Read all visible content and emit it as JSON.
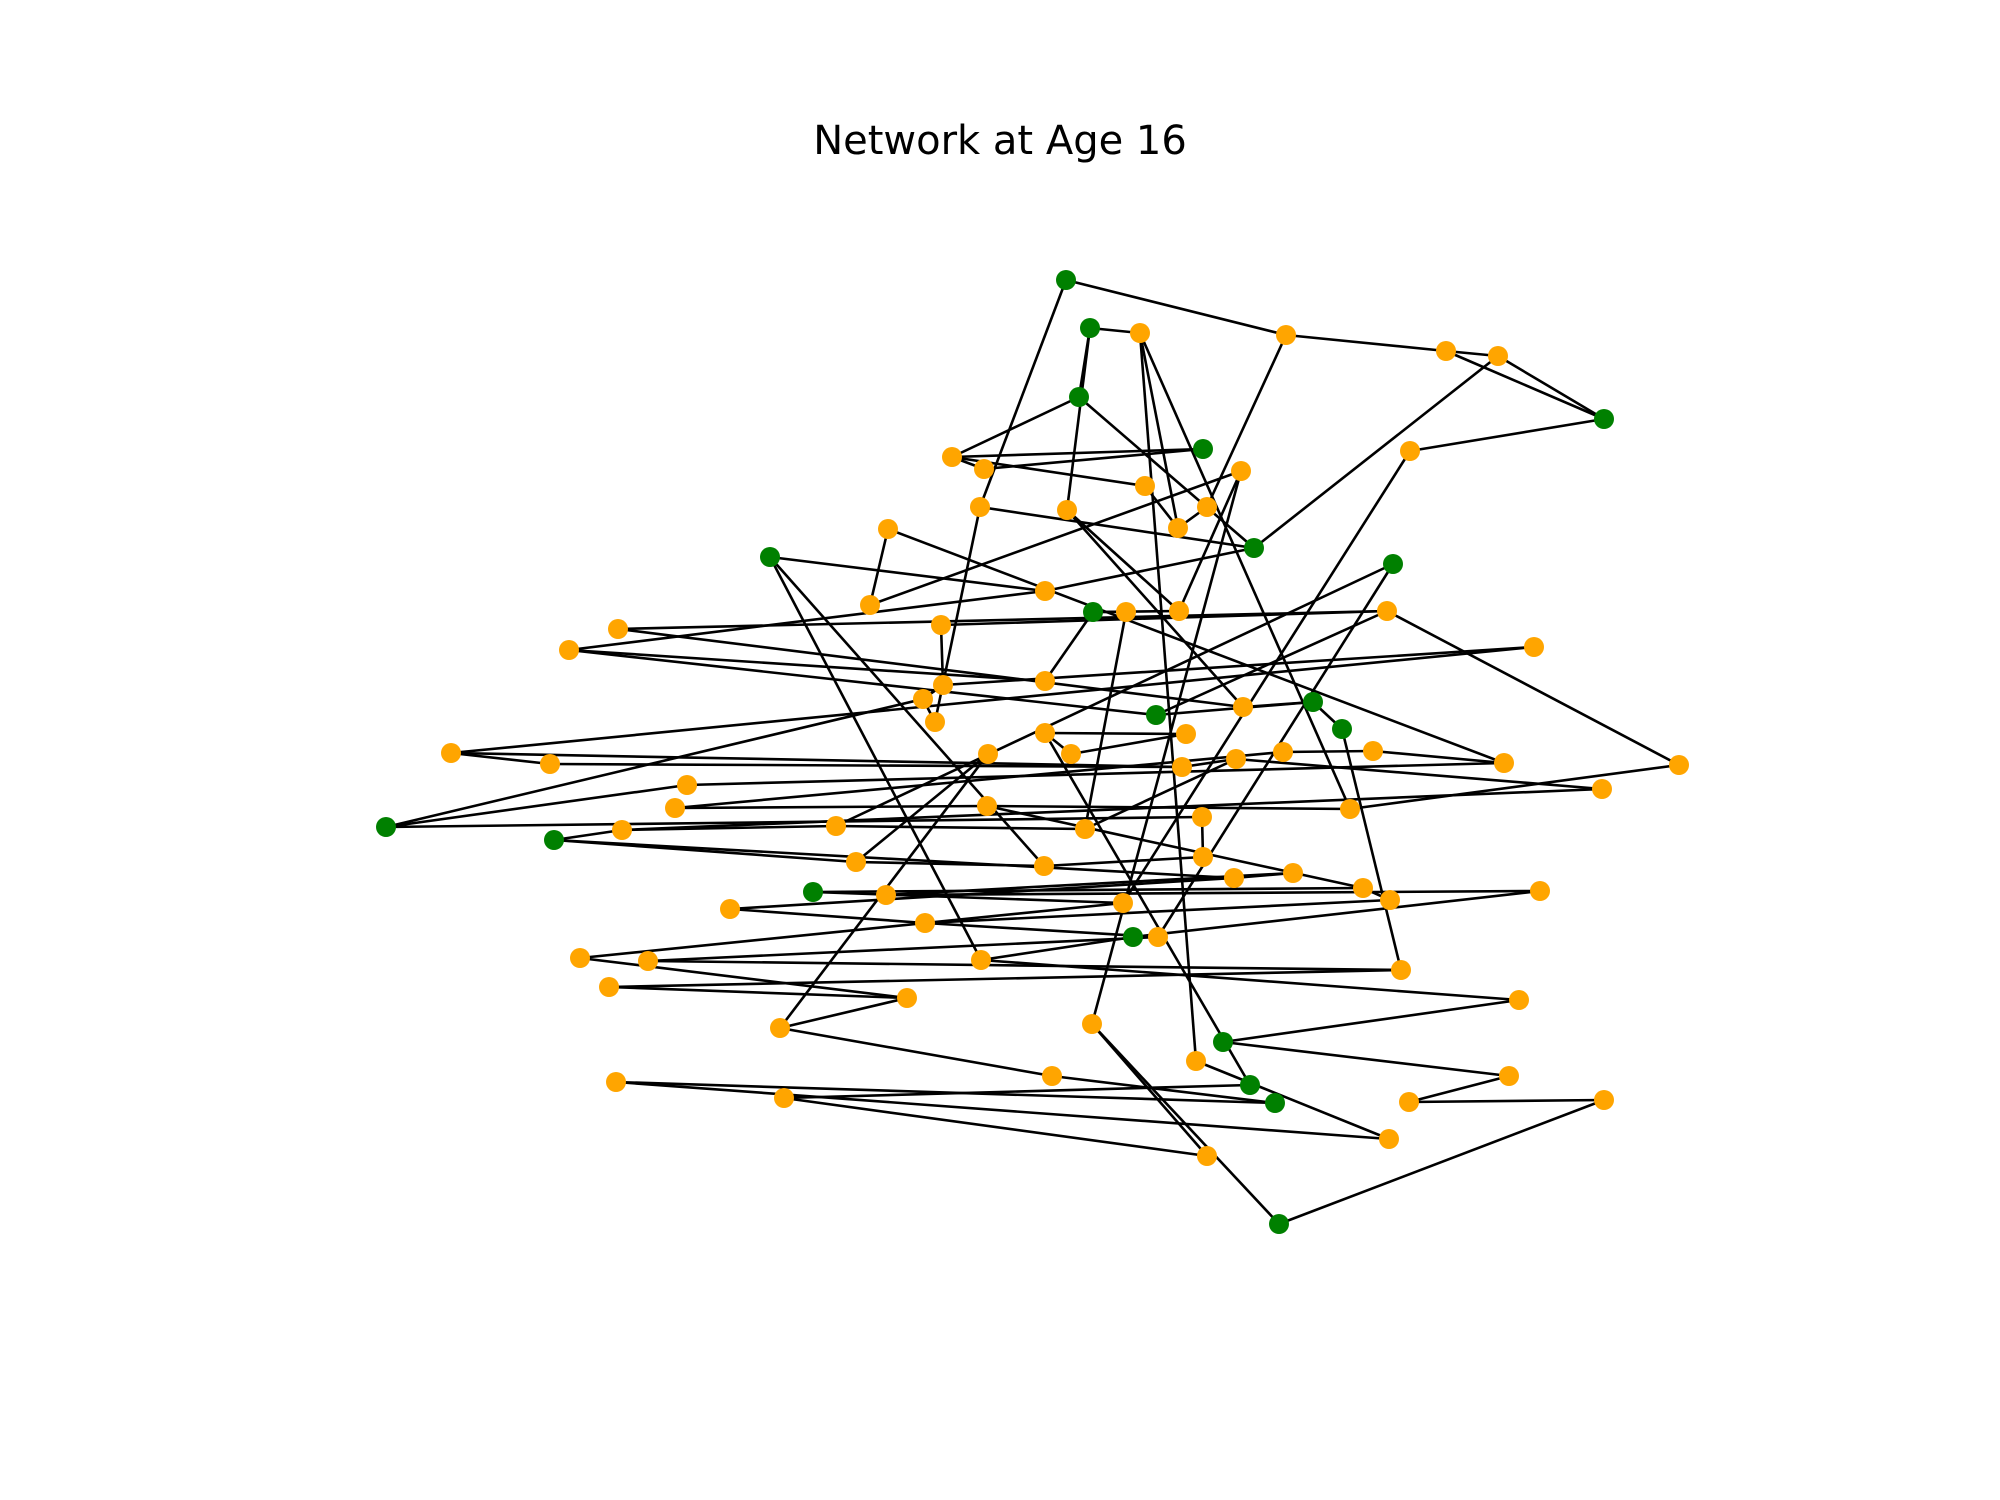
{
  "title": "Network at Age 16",
  "colors": {
    "green": "#008000",
    "orange": "#ffa500",
    "edge": "#000000",
    "background": "#ffffff"
  },
  "legend": "none",
  "nodes": [
    {
      "id": "n1",
      "group": "green"
    },
    {
      "id": "n2",
      "group": "green"
    },
    {
      "id": "n3",
      "group": "orange"
    },
    {
      "id": "n4",
      "group": "orange"
    },
    {
      "id": "n5",
      "group": "orange"
    },
    {
      "id": "n6",
      "group": "orange"
    },
    {
      "id": "n7",
      "group": "green"
    },
    {
      "id": "n8",
      "group": "green"
    },
    {
      "id": "n9",
      "group": "orange"
    },
    {
      "id": "n10",
      "group": "orange"
    },
    {
      "id": "n11",
      "group": "green"
    },
    {
      "id": "n12",
      "group": "orange"
    },
    {
      "id": "n13",
      "group": "orange"
    },
    {
      "id": "n14",
      "group": "orange"
    },
    {
      "id": "n15",
      "group": "orange"
    },
    {
      "id": "n16",
      "group": "orange"
    },
    {
      "id": "n17",
      "group": "orange"
    },
    {
      "id": "n18",
      "group": "orange"
    },
    {
      "id": "n19",
      "group": "orange"
    },
    {
      "id": "n20",
      "group": "green"
    },
    {
      "id": "n21",
      "group": "green"
    },
    {
      "id": "n22",
      "group": "green"
    },
    {
      "id": "n23",
      "group": "orange"
    },
    {
      "id": "n24",
      "group": "orange"
    },
    {
      "id": "n25",
      "group": "orange"
    },
    {
      "id": "n26",
      "group": "green"
    },
    {
      "id": "n27",
      "group": "orange"
    },
    {
      "id": "n28",
      "group": "orange"
    },
    {
      "id": "n29",
      "group": "orange"
    },
    {
      "id": "n30",
      "group": "orange"
    },
    {
      "id": "n31",
      "group": "orange"
    },
    {
      "id": "n32",
      "group": "orange"
    },
    {
      "id": "n33",
      "group": "orange"
    },
    {
      "id": "n34",
      "group": "orange"
    },
    {
      "id": "n35",
      "group": "green"
    },
    {
      "id": "n36",
      "group": "orange"
    },
    {
      "id": "n37",
      "group": "green"
    },
    {
      "id": "n38",
      "group": "orange"
    },
    {
      "id": "n39",
      "group": "orange"
    },
    {
      "id": "n40",
      "group": "green"
    },
    {
      "id": "n41",
      "group": "orange"
    },
    {
      "id": "n42",
      "group": "orange"
    },
    {
      "id": "n43",
      "group": "orange"
    },
    {
      "id": "n44",
      "group": "orange"
    },
    {
      "id": "n45",
      "group": "orange"
    },
    {
      "id": "n46",
      "group": "orange"
    },
    {
      "id": "n47",
      "group": "orange"
    },
    {
      "id": "n48",
      "group": "orange"
    },
    {
      "id": "n49",
      "group": "orange"
    },
    {
      "id": "n50",
      "group": "orange"
    },
    {
      "id": "n51",
      "group": "orange"
    },
    {
      "id": "n52",
      "group": "orange"
    },
    {
      "id": "n53",
      "group": "orange"
    },
    {
      "id": "n54",
      "group": "orange"
    },
    {
      "id": "n55",
      "group": "orange"
    },
    {
      "id": "n56",
      "group": "orange"
    },
    {
      "id": "n57",
      "group": "orange"
    },
    {
      "id": "n58",
      "group": "green"
    },
    {
      "id": "n59",
      "group": "orange"
    },
    {
      "id": "n60",
      "group": "orange"
    },
    {
      "id": "n61",
      "group": "orange"
    },
    {
      "id": "n62",
      "group": "orange"
    },
    {
      "id": "n63",
      "group": "green"
    },
    {
      "id": "n64",
      "group": "orange"
    },
    {
      "id": "n65",
      "group": "orange"
    },
    {
      "id": "n66",
      "group": "orange"
    },
    {
      "id": "n67",
      "group": "orange"
    },
    {
      "id": "n68",
      "group": "orange"
    },
    {
      "id": "n69",
      "group": "orange"
    },
    {
      "id": "n70",
      "group": "green"
    },
    {
      "id": "n71",
      "group": "orange"
    },
    {
      "id": "n72",
      "group": "orange"
    },
    {
      "id": "n73",
      "group": "orange"
    },
    {
      "id": "n74",
      "group": "orange"
    },
    {
      "id": "n75",
      "group": "orange"
    },
    {
      "id": "n76",
      "group": "orange"
    },
    {
      "id": "n77",
      "group": "green"
    },
    {
      "id": "n78",
      "group": "orange"
    },
    {
      "id": "n79",
      "group": "orange"
    },
    {
      "id": "n80",
      "group": "orange"
    },
    {
      "id": "n81",
      "group": "orange"
    },
    {
      "id": "n82",
      "group": "orange"
    },
    {
      "id": "n83",
      "group": "orange"
    },
    {
      "id": "n84",
      "group": "orange"
    },
    {
      "id": "n85",
      "group": "orange"
    },
    {
      "id": "n86",
      "group": "orange"
    },
    {
      "id": "n87",
      "group": "green"
    },
    {
      "id": "n88",
      "group": "orange"
    },
    {
      "id": "n89",
      "group": "orange"
    },
    {
      "id": "n90",
      "group": "green"
    },
    {
      "id": "n91",
      "group": "green"
    },
    {
      "id": "n92",
      "group": "orange"
    },
    {
      "id": "n93",
      "group": "orange"
    },
    {
      "id": "n94",
      "group": "orange"
    },
    {
      "id": "n95",
      "group": "orange"
    },
    {
      "id": "n96",
      "group": "orange"
    },
    {
      "id": "n97",
      "group": "orange"
    },
    {
      "id": "n98",
      "group": "green"
    },
    {
      "id": "n99",
      "group": "orange"
    },
    {
      "id": "n100",
      "group": "orange"
    }
  ],
  "edges": [
    [
      "n1",
      "n4"
    ],
    [
      "n1",
      "n18"
    ],
    [
      "n4",
      "n5"
    ],
    [
      "n5",
      "n6"
    ],
    [
      "n6",
      "n7"
    ],
    [
      "n5",
      "n7"
    ],
    [
      "n4",
      "n16"
    ],
    [
      "n2",
      "n3"
    ],
    [
      "n2",
      "n8"
    ],
    [
      "n8",
      "n9"
    ],
    [
      "n2",
      "n14"
    ],
    [
      "n3",
      "n17"
    ],
    [
      "n3",
      "n55"
    ],
    [
      "n9",
      "n10"
    ],
    [
      "n9",
      "n11"
    ],
    [
      "n10",
      "n11"
    ],
    [
      "n9",
      "n13"
    ],
    [
      "n12",
      "n24"
    ],
    [
      "n12",
      "n27"
    ],
    [
      "n15",
      "n7"
    ],
    [
      "n15",
      "n76"
    ],
    [
      "n6",
      "n21"
    ],
    [
      "n21",
      "n8"
    ],
    [
      "n16",
      "n17"
    ],
    [
      "n14",
      "n27"
    ],
    [
      "n13",
      "n17"
    ],
    [
      "n14",
      "n36"
    ],
    [
      "n18",
      "n21"
    ],
    [
      "n18",
      "n39"
    ],
    [
      "n19",
      "n24"
    ],
    [
      "n19",
      "n51"
    ],
    [
      "n20",
      "n79"
    ],
    [
      "n20",
      "n66"
    ],
    [
      "n20",
      "n23"
    ],
    [
      "n22",
      "n78"
    ],
    [
      "n22",
      "n61"
    ],
    [
      "n23",
      "n33"
    ],
    [
      "n23",
      "n21"
    ],
    [
      "n25",
      "n26"
    ],
    [
      "n25",
      "n59"
    ],
    [
      "n26",
      "n34"
    ],
    [
      "n26",
      "n27"
    ],
    [
      "n28",
      "n29"
    ],
    [
      "n28",
      "n36"
    ],
    [
      "n29",
      "n35"
    ],
    [
      "n29",
      "n30"
    ],
    [
      "n29",
      "n52"
    ],
    [
      "n30",
      "n31"
    ],
    [
      "n31",
      "n32"
    ],
    [
      "n31",
      "n38"
    ],
    [
      "n32",
      "n45"
    ],
    [
      "n33",
      "n34"
    ],
    [
      "n33",
      "n35"
    ],
    [
      "n35",
      "n37"
    ],
    [
      "n36",
      "n37"
    ],
    [
      "n37",
      "n40"
    ],
    [
      "n38",
      "n39"
    ],
    [
      "n38",
      "n58"
    ],
    [
      "n40",
      "n82"
    ],
    [
      "n41",
      "n42"
    ],
    [
      "n41",
      "n43"
    ],
    [
      "n42",
      "n43"
    ],
    [
      "n42",
      "n90"
    ],
    [
      "n44",
      "n64"
    ],
    [
      "n44",
      "n86"
    ],
    [
      "n45",
      "n47"
    ],
    [
      "n45",
      "n46"
    ],
    [
      "n46",
      "n47"
    ],
    [
      "n47",
      "n48"
    ],
    [
      "n48",
      "n59"
    ],
    [
      "n48",
      "n54"
    ],
    [
      "n49",
      "n50"
    ],
    [
      "n49",
      "n56"
    ],
    [
      "n50",
      "n51"
    ],
    [
      "n51",
      "n53"
    ],
    [
      "n52",
      "n55"
    ],
    [
      "n53",
      "n58"
    ],
    [
      "n54",
      "n62"
    ],
    [
      "n55",
      "n57"
    ],
    [
      "n56",
      "n57"
    ],
    [
      "n57",
      "n69"
    ],
    [
      "n58",
      "n60"
    ],
    [
      "n59",
      "n61"
    ],
    [
      "n60",
      "n65"
    ],
    [
      "n61",
      "n62"
    ],
    [
      "n62",
      "n63"
    ],
    [
      "n63",
      "n64"
    ],
    [
      "n63",
      "n67"
    ],
    [
      "n64",
      "n66"
    ],
    [
      "n65",
      "n66"
    ],
    [
      "n67",
      "n68"
    ],
    [
      "n67",
      "n73"
    ],
    [
      "n68",
      "n71"
    ],
    [
      "n69",
      "n70"
    ],
    [
      "n69",
      "n72"
    ],
    [
      "n70",
      "n76"
    ],
    [
      "n71",
      "n74"
    ],
    [
      "n72",
      "n75"
    ],
    [
      "n73",
      "n75"
    ],
    [
      "n74",
      "n77"
    ],
    [
      "n75",
      "n78"
    ],
    [
      "n76",
      "n80"
    ],
    [
      "n77",
      "n79"
    ],
    [
      "n78",
      "n81"
    ],
    [
      "n79",
      "n85"
    ],
    [
      "n80",
      "n84"
    ],
    [
      "n81",
      "n82"
    ],
    [
      "n82",
      "n83"
    ],
    [
      "n83",
      "n84"
    ],
    [
      "n84",
      "n86"
    ],
    [
      "n85",
      "n87"
    ],
    [
      "n86",
      "n88"
    ],
    [
      "n87",
      "n89"
    ],
    [
      "n88",
      "n91"
    ],
    [
      "n89",
      "n92"
    ],
    [
      "n90",
      "n94"
    ],
    [
      "n91",
      "n93"
    ],
    [
      "n92",
      "n95"
    ],
    [
      "n93",
      "n96"
    ],
    [
      "n94",
      "n97"
    ],
    [
      "n95",
      "n98"
    ],
    [
      "n96",
      "n99"
    ],
    [
      "n97",
      "n100"
    ],
    [
      "n98",
      "n100"
    ],
    [
      "n99",
      "n3"
    ],
    [
      "n100",
      "n12"
    ]
  ]
}
